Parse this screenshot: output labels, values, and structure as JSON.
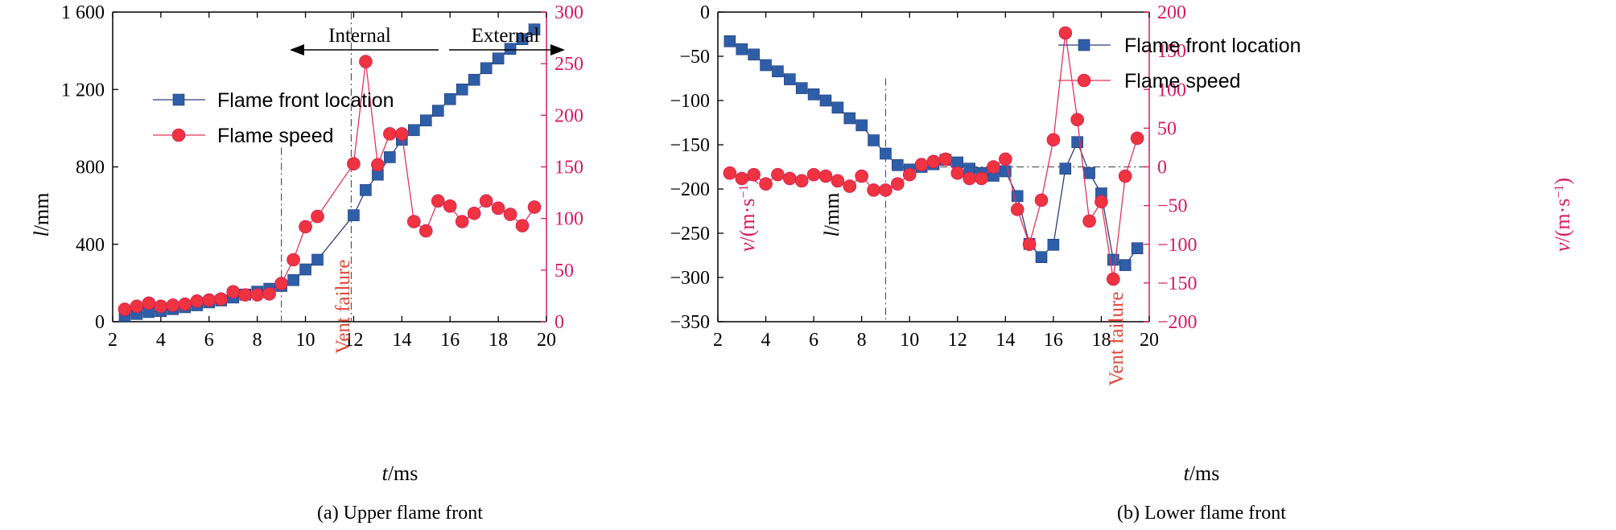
{
  "chart_data": [
    {
      "type": "line",
      "panel": "a",
      "caption": "(a) Upper flame front",
      "xlabel_italic": "t",
      "xlabel_unit": "/ms",
      "ylabel_left_italic": "l",
      "ylabel_left_unit": "/mm",
      "ylabel_right_italic": "v",
      "ylabel_right_unit": "/(m·s",
      "ylabel_right_sup": "−1",
      "ylabel_right_close": ")",
      "xlim": [
        2,
        20
      ],
      "ylim_left": [
        0,
        1600
      ],
      "ylim_right": [
        0,
        300
      ],
      "x_ticks": [
        "2",
        "4",
        "6",
        "8",
        "10",
        "12",
        "14",
        "16",
        "18",
        "20"
      ],
      "y_left_ticks": [
        "0",
        "400",
        "800",
        "1 200",
        "1 600"
      ],
      "y_left_tick_values": [
        0,
        400,
        800,
        1200,
        1600
      ],
      "y_right_ticks": [
        "0",
        "50",
        "100",
        "150",
        "200",
        "250",
        "300"
      ],
      "y_right_tick_values": [
        0,
        50,
        100,
        150,
        200,
        250,
        300
      ],
      "annotations": {
        "vent_failure": "Vent failure",
        "vent_failure_x": 9,
        "boundary_x": 11.9,
        "internal": "Internal",
        "external": "External"
      },
      "legend": [
        "Flame front location",
        "Flame speed"
      ],
      "series": [
        {
          "name": "Flame front location",
          "axis": "left",
          "color": "#2f5ea8",
          "x": [
            2.5,
            3,
            3.5,
            4,
            4.5,
            5,
            5.5,
            6,
            6.5,
            7,
            7.5,
            8,
            8.5,
            9,
            9.5,
            10,
            10.5,
            12,
            12.5,
            13,
            13.5,
            14,
            14.5,
            15,
            15.5,
            16,
            16.5,
            17,
            17.5,
            18,
            18.5,
            19,
            19.5
          ],
          "values": [
            30,
            40,
            50,
            55,
            65,
            75,
            85,
            100,
            110,
            125,
            140,
            155,
            170,
            185,
            215,
            270,
            320,
            550,
            680,
            760,
            850,
            940,
            990,
            1040,
            1090,
            1150,
            1200,
            1250,
            1310,
            1360,
            1410,
            1460,
            1510
          ]
        },
        {
          "name": "Flame speed",
          "axis": "right",
          "color": "#ef3340",
          "x": [
            2.5,
            3,
            3.5,
            4,
            4.5,
            5,
            5.5,
            6,
            6.5,
            7,
            7.5,
            8,
            8.5,
            9,
            9.5,
            10,
            10.5,
            12,
            12.5,
            13,
            13.5,
            14,
            14.5,
            15,
            15.5,
            16,
            16.5,
            17,
            17.5,
            18,
            18.5,
            19,
            19.5
          ],
          "values": [
            12,
            15,
            18,
            15,
            16,
            17,
            20,
            21,
            22,
            29,
            26,
            26,
            27,
            37,
            60,
            92,
            102,
            153,
            252,
            152,
            182,
            182,
            97,
            88,
            117,
            112,
            97,
            105,
            117,
            110,
            104,
            93,
            111
          ]
        }
      ]
    },
    {
      "type": "line",
      "panel": "b",
      "caption": "(b) Lower flame front",
      "xlabel_italic": "t",
      "xlabel_unit": "/ms",
      "ylabel_left_italic": "l",
      "ylabel_left_unit": "/mm",
      "ylabel_right_italic": "v",
      "ylabel_right_unit": "/(m·s",
      "ylabel_right_sup": "−1",
      "ylabel_right_close": ")",
      "xlim": [
        2,
        20
      ],
      "ylim_left": [
        -350,
        0
      ],
      "ylim_right": [
        -200,
        200
      ],
      "x_ticks": [
        "2",
        "4",
        "6",
        "8",
        "10",
        "12",
        "14",
        "16",
        "18",
        "20"
      ],
      "y_left_ticks": [
        "0",
        "−50",
        "−100",
        "−150",
        "−200",
        "−250",
        "−300",
        "−350"
      ],
      "y_left_tick_values": [
        0,
        -50,
        -100,
        -150,
        -200,
        -250,
        -300,
        -350
      ],
      "y_right_ticks": [
        "200",
        "150",
        "100",
        "50",
        "0",
        "−50",
        "−100",
        "−150",
        "−200"
      ],
      "y_right_tick_values": [
        200,
        150,
        100,
        50,
        0,
        -50,
        -100,
        -150,
        -200
      ],
      "annotations": {
        "vent_failure": "Vent failure",
        "vent_failure_x": 9,
        "zero_ref_from_x": 10
      },
      "legend": [
        "Flame front location",
        "Flame speed"
      ],
      "series": [
        {
          "name": "Flame front location",
          "axis": "left",
          "color": "#2f5ea8",
          "x": [
            2.5,
            3,
            3.5,
            4,
            4.5,
            5,
            5.5,
            6,
            6.5,
            7,
            7.5,
            8,
            8.5,
            9,
            9.5,
            10,
            10.5,
            11,
            11.5,
            12,
            12.5,
            13,
            13.5,
            14,
            14.5,
            15,
            15.5,
            16,
            16.5,
            17,
            17.5,
            18,
            18.5,
            19,
            19.5
          ],
          "values": [
            -33,
            -42,
            -48,
            -60,
            -67,
            -76,
            -86,
            -93,
            -100,
            -108,
            -120,
            -128,
            -145,
            -160,
            -173,
            -178,
            -175,
            -172,
            -167,
            -170,
            -177,
            -182,
            -185,
            -180,
            -208,
            -262,
            -277,
            -263,
            -177,
            -147,
            -182,
            -205,
            -280,
            -286,
            -267
          ]
        },
        {
          "name": "Flame speed",
          "axis": "right",
          "color": "#ef3340",
          "x": [
            2.5,
            3,
            3.5,
            4,
            4.5,
            5,
            5.5,
            6,
            6.5,
            7,
            7.5,
            8,
            8.5,
            9,
            9.5,
            10,
            10.5,
            11,
            11.5,
            12,
            12.5,
            13,
            13.5,
            14,
            14.5,
            15,
            15.5,
            16,
            16.5,
            17,
            17.5,
            18,
            18.5,
            19,
            19.5
          ],
          "values": [
            -8,
            -15,
            -10,
            -22,
            -10,
            -15,
            -18,
            -10,
            -12,
            -18,
            -25,
            -12,
            -30,
            -30,
            -22,
            -10,
            3,
            7,
            10,
            -8,
            -15,
            -15,
            0,
            10,
            -55,
            -100,
            -43,
            35,
            173,
            61,
            -70,
            -45,
            -145,
            -12,
            37
          ]
        }
      ]
    }
  ]
}
